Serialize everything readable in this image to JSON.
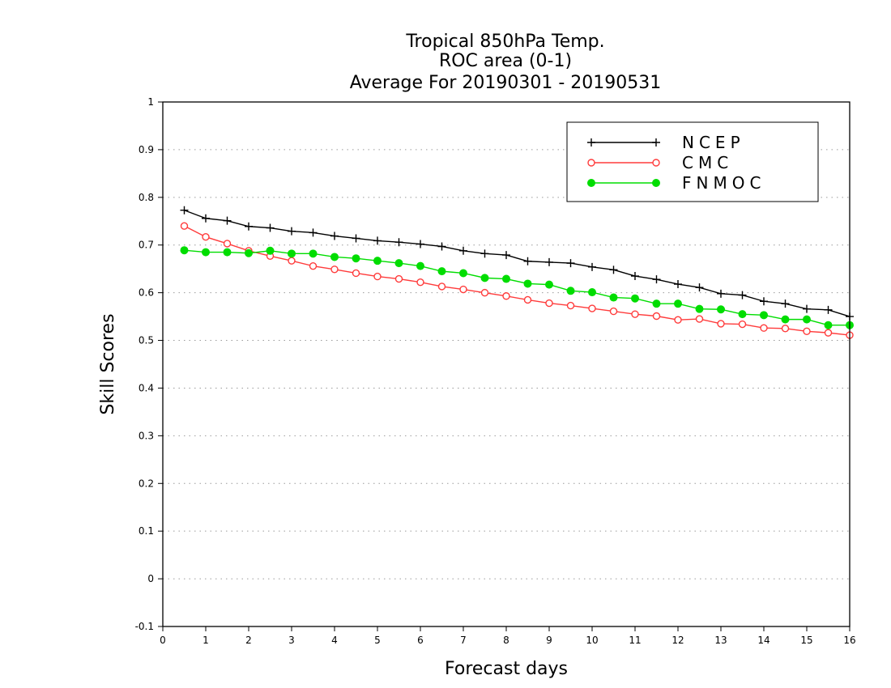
{
  "chart_data": {
    "type": "line",
    "title": [
      "Tropical 850hPa Temp.",
      "ROC area (0-1)",
      "Average For 20190301 - 20190531"
    ],
    "xlabel": "Forecast days",
    "ylabel": "Skill Scores",
    "xlim": [
      0,
      16
    ],
    "ylim": [
      -0.1,
      1
    ],
    "xticks": [
      0,
      1,
      2,
      3,
      4,
      5,
      6,
      7,
      8,
      9,
      10,
      11,
      12,
      13,
      14,
      15,
      16
    ],
    "yticks": [
      -0.1,
      0,
      0.1,
      0.2,
      0.3,
      0.4,
      0.5,
      0.6,
      0.7,
      0.8,
      0.9,
      1
    ],
    "ytick_labels": [
      "-0.1",
      "0",
      "0.1",
      "0.2",
      "0.3",
      "0.4",
      "0.5",
      "0.6",
      "0.7",
      "0.8",
      "0.9",
      "1"
    ],
    "grid": "horizontal dotted",
    "legend_position": "top-right",
    "x": [
      0.5,
      1,
      1.5,
      2,
      2.5,
      3,
      3.5,
      4,
      4.5,
      5,
      5.5,
      6,
      6.5,
      7,
      7.5,
      8,
      8.5,
      9,
      9.5,
      10,
      10.5,
      11,
      11.5,
      12,
      12.5,
      13,
      13.5,
      14,
      14.5,
      15,
      15.5,
      16
    ],
    "series": [
      {
        "name": "NCEP",
        "color": "#000000",
        "marker": "plus",
        "values": [
          0.773,
          0.756,
          0.751,
          0.739,
          0.736,
          0.729,
          0.726,
          0.719,
          0.714,
          0.709,
          0.706,
          0.702,
          0.697,
          0.688,
          0.682,
          0.679,
          0.666,
          0.664,
          0.662,
          0.654,
          0.648,
          0.635,
          0.628,
          0.618,
          0.611,
          0.598,
          0.595,
          0.582,
          0.577,
          0.566,
          0.564,
          0.55
        ]
      },
      {
        "name": "CMC",
        "color": "#ff3b3b",
        "marker": "open-circle",
        "values": [
          0.74,
          0.717,
          0.703,
          0.688,
          0.677,
          0.667,
          0.656,
          0.649,
          0.641,
          0.634,
          0.629,
          0.622,
          0.613,
          0.607,
          0.6,
          0.593,
          0.585,
          0.578,
          0.573,
          0.567,
          0.561,
          0.555,
          0.551,
          0.543,
          0.545,
          0.535,
          0.534,
          0.526,
          0.525,
          0.519,
          0.516,
          0.511
        ]
      },
      {
        "name": "FNMOC",
        "color": "#00dd00",
        "marker": "filled-circle",
        "values": [
          0.689,
          0.685,
          0.685,
          0.683,
          0.688,
          0.682,
          0.682,
          0.675,
          0.672,
          0.667,
          0.662,
          0.656,
          0.645,
          0.641,
          0.631,
          0.629,
          0.619,
          0.617,
          0.604,
          0.601,
          0.59,
          0.588,
          0.577,
          0.577,
          0.566,
          0.565,
          0.555,
          0.553,
          0.544,
          0.544,
          0.532,
          0.532
        ]
      }
    ]
  }
}
